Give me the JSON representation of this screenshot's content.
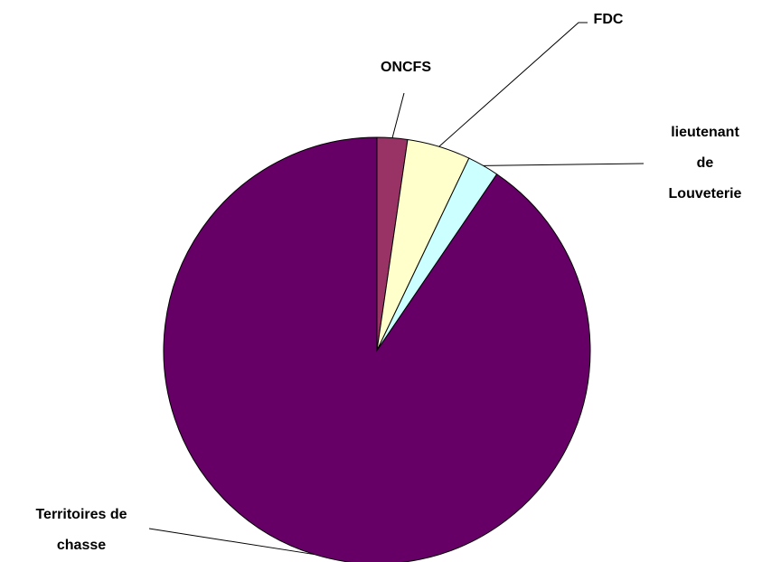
{
  "chart_data": {
    "type": "pie",
    "categories": [
      "ONCFS",
      "FDC",
      "lieutenant de\nLouveterie",
      "Territoires de\nchasse"
    ],
    "values": [
      2.3,
      4.8,
      2.4,
      90.5
    ],
    "colors": [
      "#993366",
      "#ffffcc",
      "#ccffff",
      "#660066"
    ]
  }
}
